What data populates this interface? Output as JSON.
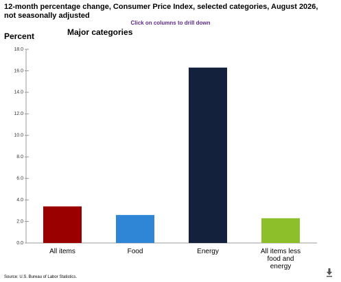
{
  "chart_data": {
    "type": "bar",
    "title": "12-month percentage change, Consumer Price Index, selected categories, August 2026, not seasonally adjusted",
    "subtitle": "Click on columns to drill down",
    "y_label": "Percent",
    "heading": "Major categories",
    "source": "Source: U.S. Bureau of Labor Statistics.",
    "categories": [
      "All items",
      "Food",
      "Energy",
      "All items less food and energy"
    ],
    "values": [
      3.4,
      2.6,
      16.3,
      2.3
    ],
    "colors": [
      "#9b0000",
      "#2f86d6",
      "#14213d",
      "#8dbf2b"
    ],
    "ylim": [
      0,
      18
    ],
    "yticks": [
      {
        "value": 0,
        "label": "0.0"
      },
      {
        "value": 2,
        "label": "2.0"
      },
      {
        "value": 4,
        "label": "4.0"
      },
      {
        "value": 6,
        "label": "6.0"
      },
      {
        "value": 8,
        "label": "8.0"
      },
      {
        "value": 10,
        "label": "10.0"
      },
      {
        "value": 12,
        "label": "12.0"
      },
      {
        "value": 14,
        "label": "14.0"
      },
      {
        "value": 16,
        "label": "16.0"
      },
      {
        "value": 18,
        "label": "18.0"
      }
    ],
    "grid": false
  }
}
